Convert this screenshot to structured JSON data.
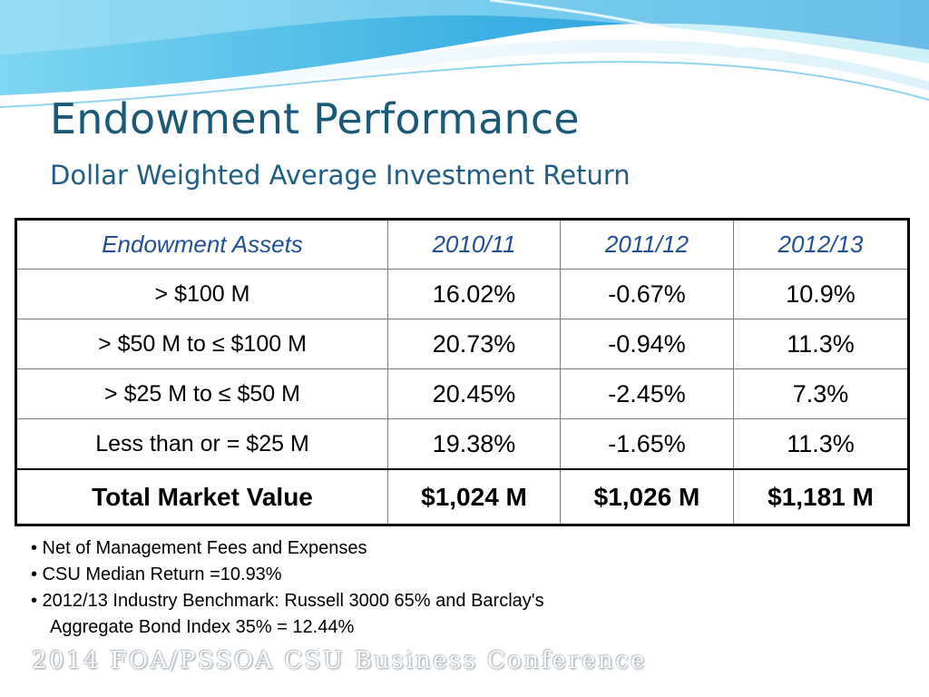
{
  "slide": {
    "title": "Endowment Performance",
    "subtitle": "Dollar Weighted Average Investment Return",
    "footer": "2014 FOA/PSSOA CSU Business Conference"
  },
  "table": {
    "headers": [
      "Endowment Assets",
      "2010/11",
      "2011/12",
      "2012/13"
    ],
    "rows": [
      [
        "> $100 M",
        "16.02%",
        "-0.67%",
        "10.9%"
      ],
      [
        "> $50 M to ≤ $100 M",
        "20.73%",
        "-0.94%",
        "11.3%"
      ],
      [
        "> $25 M to ≤ $50 M",
        "20.45%",
        "-2.45%",
        "7.3%"
      ],
      [
        "Less than or = $25 M",
        "19.38%",
        "-1.65%",
        "11.3%"
      ]
    ],
    "total": [
      "Total Market Value",
      "$1,024 M",
      "$1,026 M",
      "$1,181 M"
    ]
  },
  "notes": [
    "• Net of Management Fees and Expenses",
    "• CSU Median Return =10.93%",
    "• 2012/13 Industry Benchmark: Russell 3000 65% and Barclay's",
    "Aggregate Bond Index 35% = 12.44%"
  ],
  "colors": {
    "title": "#1a5a78",
    "header_text": "#1f4f96",
    "wave_light": "#bfe8f6",
    "wave_dark": "#3fa4dc"
  }
}
